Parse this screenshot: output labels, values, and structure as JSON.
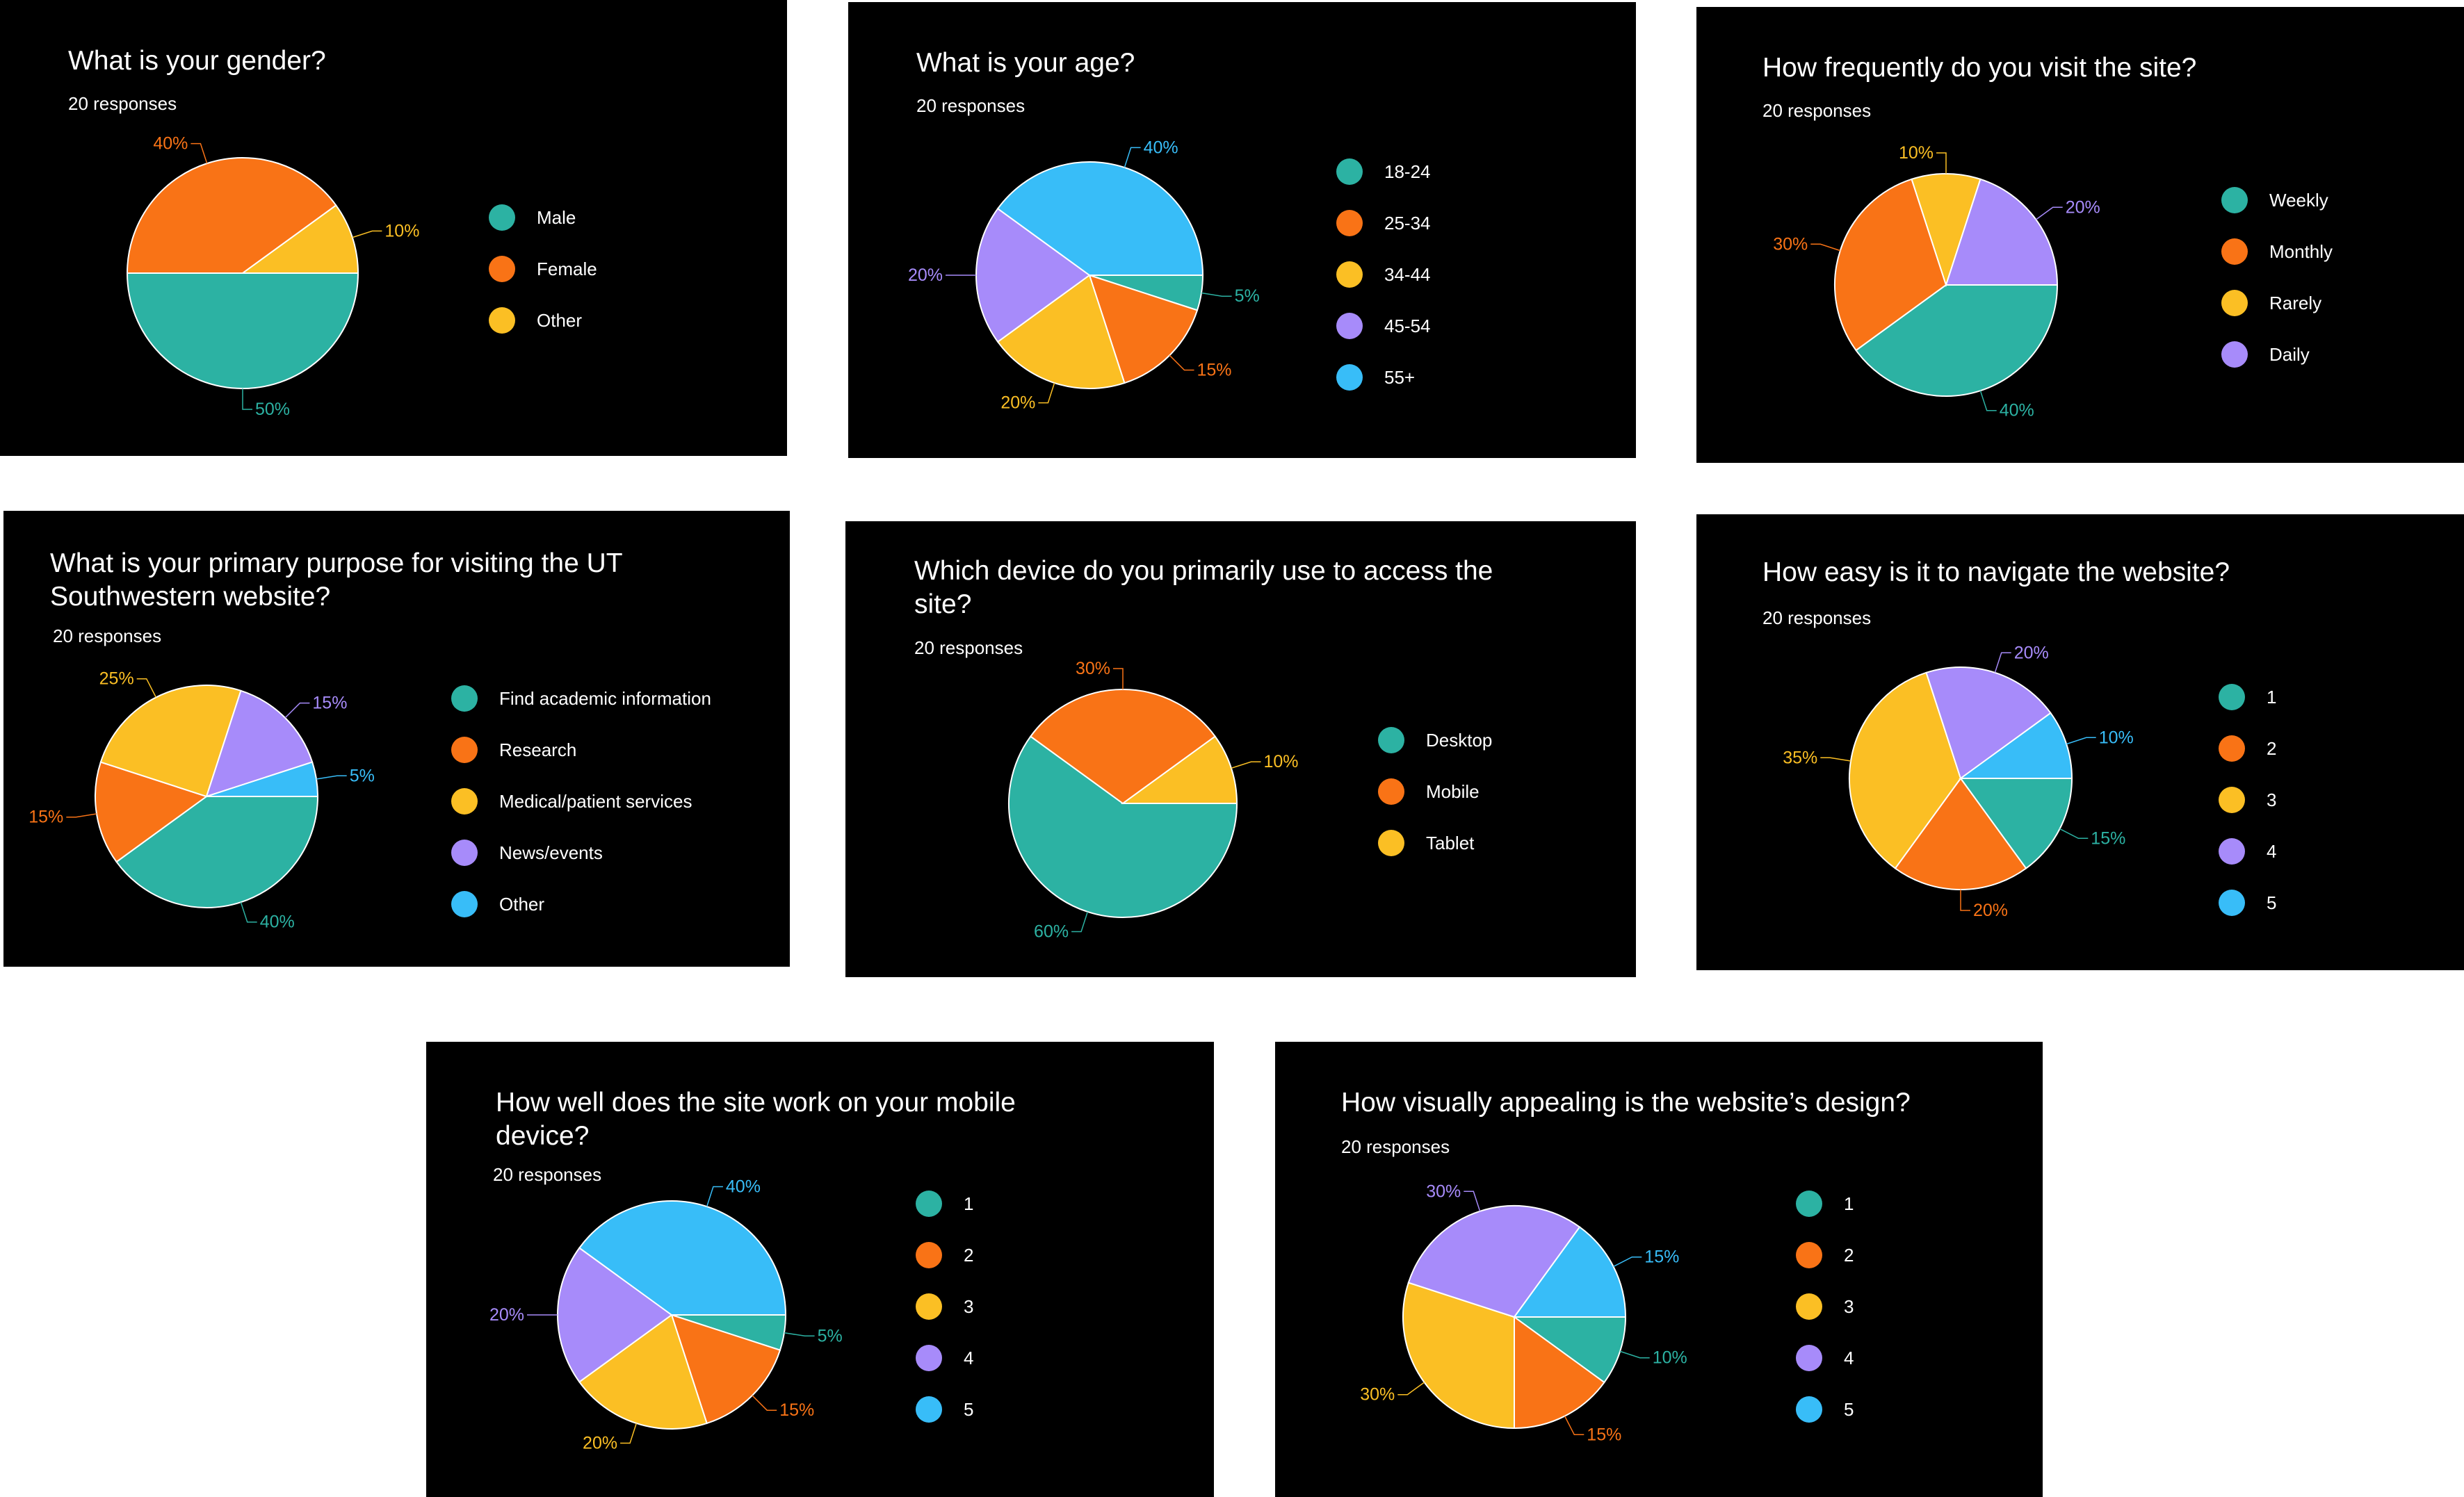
{
  "responses_label": "20 responses",
  "colors": {
    "teal": "#2cb2a3",
    "orange": "#f97316",
    "yellow": "#fbbf24",
    "purple": "#a78bfa",
    "blue": "#38bdf8",
    "slice_border": "#ffffff",
    "panel_bg": "#000000",
    "text": "#ffffff"
  },
  "chart_data": [
    {
      "type": "pie",
      "title": "What is your gender?",
      "responses": "20 responses",
      "legend": [
        "Male",
        "Female",
        "Other"
      ],
      "slices": [
        {
          "name": "Male",
          "value": 50,
          "label": "50%",
          "color": "teal"
        },
        {
          "name": "Female",
          "value": 40,
          "label": "40%",
          "color": "orange"
        },
        {
          "name": "Other",
          "value": 10,
          "label": "10%",
          "color": "yellow"
        }
      ]
    },
    {
      "type": "pie",
      "title": "What is your age?",
      "responses": "20 responses",
      "legend": [
        "18-24",
        "25-34",
        "34-44",
        "45-54",
        "55+"
      ],
      "slices": [
        {
          "name": "18-24",
          "value": 5,
          "label": "5%",
          "color": "teal"
        },
        {
          "name": "25-34",
          "value": 15,
          "label": "15%",
          "color": "orange"
        },
        {
          "name": "34-44",
          "value": 20,
          "label": "20%",
          "color": "yellow"
        },
        {
          "name": "45-54",
          "value": 20,
          "label": "20%",
          "color": "purple"
        },
        {
          "name": "55+",
          "value": 40,
          "label": "40%",
          "color": "blue"
        }
      ]
    },
    {
      "type": "pie",
      "title": "How frequently do you visit the site?",
      "responses": "20 responses",
      "legend": [
        "Weekly",
        "Monthly",
        "Rarely",
        "Daily"
      ],
      "slices": [
        {
          "name": "Weekly",
          "value": 40,
          "label": "40%",
          "color": "teal"
        },
        {
          "name": "Monthly",
          "value": 30,
          "label": "30%",
          "color": "orange"
        },
        {
          "name": "Rarely",
          "value": 10,
          "label": "10%",
          "color": "yellow"
        },
        {
          "name": "Daily",
          "value": 20,
          "label": "20%",
          "color": "purple"
        }
      ]
    },
    {
      "type": "pie",
      "title": "What is your primary purpose for visiting the UT Southwestern website?",
      "responses": "20 responses",
      "legend": [
        "Find academic information",
        "Research",
        "Medical/patient services",
        "News/events",
        "Other"
      ],
      "slices": [
        {
          "name": "Find academic information",
          "value": 40,
          "label": "40%",
          "color": "teal"
        },
        {
          "name": "Research",
          "value": 15,
          "label": "15%",
          "color": "orange"
        },
        {
          "name": "Medical/patient services",
          "value": 25,
          "label": "25%",
          "color": "yellow"
        },
        {
          "name": "News/events",
          "value": 15,
          "label": "15%",
          "color": "purple"
        },
        {
          "name": "Other",
          "value": 5,
          "label": "5%",
          "color": "blue"
        }
      ]
    },
    {
      "type": "pie",
      "title": "Which device do you primarily use to access the site?",
      "responses": "20 responses",
      "legend": [
        "Desktop",
        "Mobile",
        "Tablet"
      ],
      "slices": [
        {
          "name": "Desktop",
          "value": 60,
          "label": "60%",
          "color": "teal"
        },
        {
          "name": "Mobile",
          "value": 30,
          "label": "30%",
          "color": "orange"
        },
        {
          "name": "Tablet",
          "value": 10,
          "label": "10%",
          "color": "yellow"
        }
      ]
    },
    {
      "type": "pie",
      "title": "How easy is it to navigate the website?",
      "responses": "20 responses",
      "legend": [
        "1",
        "2",
        "3",
        "4",
        "5"
      ],
      "slices": [
        {
          "name": "1",
          "value": 15,
          "label": "15%",
          "color": "teal"
        },
        {
          "name": "2",
          "value": 20,
          "label": "20%",
          "color": "orange"
        },
        {
          "name": "3",
          "value": 35,
          "label": "35%",
          "color": "yellow"
        },
        {
          "name": "4",
          "value": 20,
          "label": "20%",
          "color": "purple"
        },
        {
          "name": "5",
          "value": 10,
          "label": "10%",
          "color": "blue"
        }
      ]
    },
    {
      "type": "pie",
      "title": "How well does the site work on your mobile device?",
      "responses": "20 responses",
      "legend": [
        "1",
        "2",
        "3",
        "4",
        "5"
      ],
      "slices": [
        {
          "name": "1",
          "value": 5,
          "label": "5%",
          "color": "teal"
        },
        {
          "name": "2",
          "value": 15,
          "label": "15%",
          "color": "orange"
        },
        {
          "name": "3",
          "value": 20,
          "label": "20%",
          "color": "yellow"
        },
        {
          "name": "4",
          "value": 20,
          "label": "20%",
          "color": "purple"
        },
        {
          "name": "5",
          "value": 40,
          "label": "40%",
          "color": "blue"
        }
      ]
    },
    {
      "type": "pie",
      "title": "How visually appealing is the website’s design?",
      "responses": "20 responses",
      "legend": [
        "1",
        "2",
        "3",
        "4",
        "5"
      ],
      "slices": [
        {
          "name": "1",
          "value": 10,
          "label": "10%",
          "color": "teal"
        },
        {
          "name": "2",
          "value": 15,
          "label": "15%",
          "color": "orange"
        },
        {
          "name": "3",
          "value": 30,
          "label": "30%",
          "color": "yellow"
        },
        {
          "name": "4",
          "value": 30,
          "label": "30%",
          "color": "purple"
        },
        {
          "name": "5",
          "value": 15,
          "label": "15%",
          "color": "blue"
        }
      ]
    }
  ]
}
